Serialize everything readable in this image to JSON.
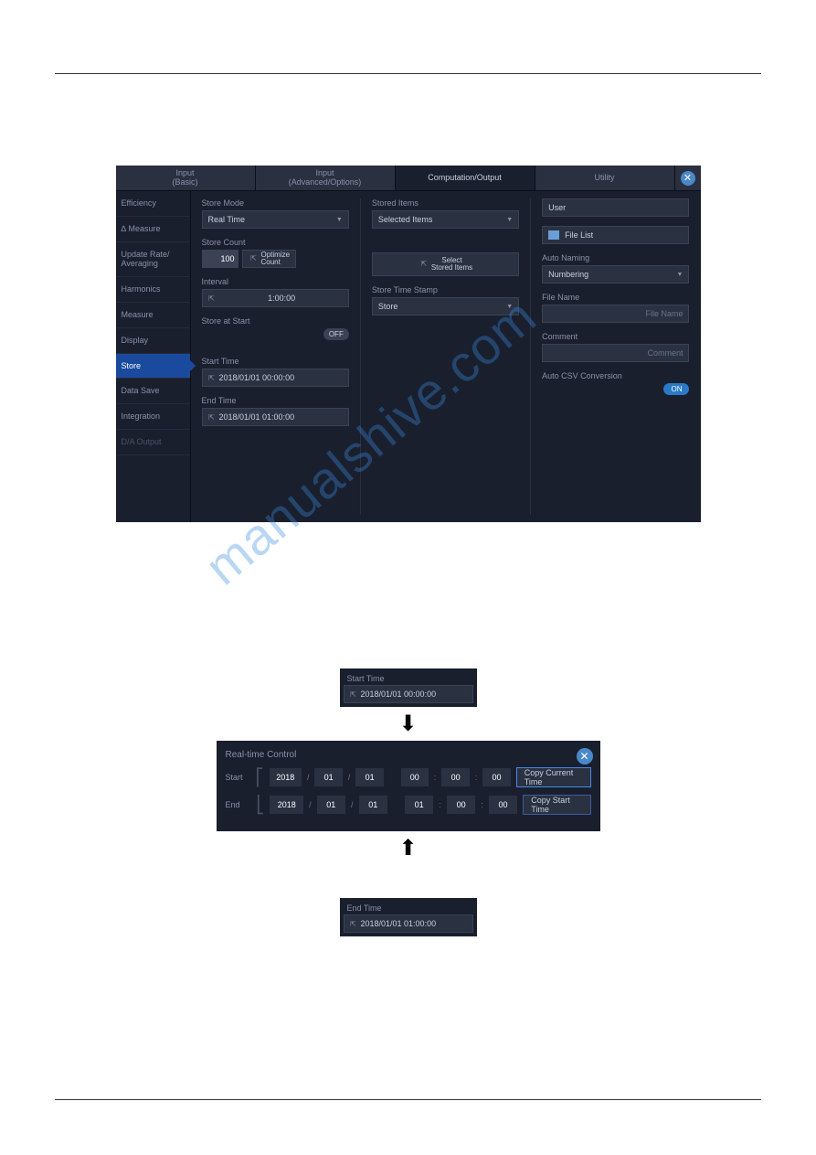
{
  "tabs": {
    "input_basic": "Input\n(Basic)",
    "input_advanced": "Input\n(Advanced/Options)",
    "computation_output": "Computation/Output",
    "utility": "Utility"
  },
  "sidebar": {
    "efficiency": "Efficiency",
    "measure": "∆ Measure",
    "update_rate": "Update Rate/\nAveraging",
    "harmonics": "Harmonics",
    "measure2": "Measure",
    "display": "Display",
    "store": "Store",
    "data_save": "Data Save",
    "integration": "Integration",
    "da_output": "D/A Output"
  },
  "col1": {
    "store_mode_label": "Store Mode",
    "store_mode_value": "Real Time",
    "store_count_label": "Store Count",
    "store_count_value": "100",
    "optimize_btn": "Optimize\nCount",
    "interval_label": "Interval",
    "interval_value": "1:00:00",
    "store_at_start_label": "Store at Start",
    "store_at_start_value": "OFF",
    "start_time_label": "Start Time",
    "start_time_value": "2018/01/01   00:00:00",
    "end_time_label": "End Time",
    "end_time_value": "2018/01/01   01:00:00"
  },
  "col2": {
    "stored_items_label": "Stored Items",
    "stored_items_value": "Selected Items",
    "select_btn": "Select\nStored Items",
    "store_time_stamp_label": "Store Time Stamp",
    "store_time_stamp_value": "Store"
  },
  "col3": {
    "user_value": "User",
    "file_list": "File List",
    "auto_naming_label": "Auto Naming",
    "auto_naming_value": "Numbering",
    "file_name_label": "File Name",
    "file_name_placeholder": "File Name",
    "comment_label": "Comment",
    "comment_placeholder": "Comment",
    "auto_csv_label": "Auto CSV Conversion",
    "auto_csv_value": "ON"
  },
  "mini_start": {
    "label": "Start Time",
    "value": "2018/01/01   00:00:00"
  },
  "mini_end": {
    "label": "End Time",
    "value": "2018/01/01   01:00:00"
  },
  "dialog": {
    "title": "Real-time Control",
    "start_label": "Start",
    "end_label": "End",
    "start": {
      "year": "2018",
      "month": "01",
      "day": "01",
      "hour": "00",
      "min": "00",
      "sec": "00"
    },
    "end": {
      "year": "2018",
      "month": "01",
      "day": "01",
      "hour": "01",
      "min": "00",
      "sec": "00"
    },
    "copy_current": "Copy Current Time",
    "copy_start": "Copy Start Time"
  },
  "watermark": "manualshive.com"
}
